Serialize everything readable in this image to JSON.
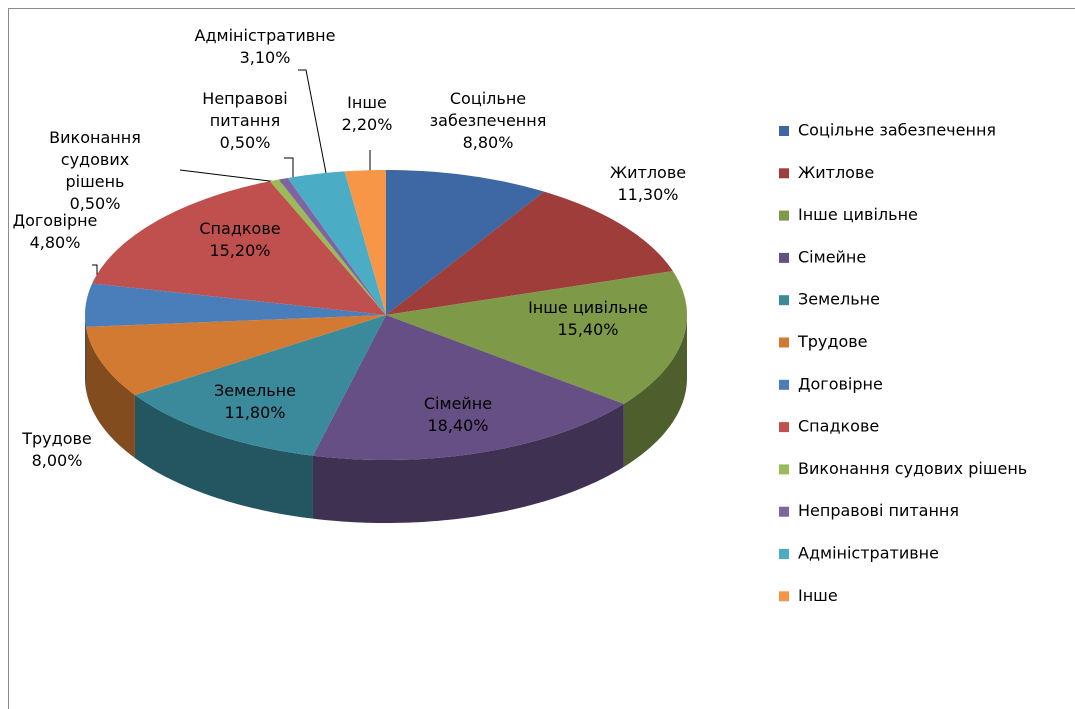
{
  "chart_data": {
    "type": "pie",
    "categories": [
      "Соцільне забезпечення",
      "Житлове",
      "Інше цивільне",
      "Сімейне",
      "Земельне",
      "Трудове",
      "Договірне",
      "Спадкове",
      "Виконання судових рішень",
      "Неправові питання",
      "Адміністративне",
      "Інше"
    ],
    "values": [
      8.8,
      11.3,
      15.4,
      18.4,
      11.8,
      8.0,
      4.8,
      15.2,
      0.5,
      0.5,
      3.1,
      2.2
    ],
    "value_labels": [
      "8,80%",
      "11,30%",
      "15,40%",
      "18,40%",
      "11,80%",
      "8,00%",
      "4,80%",
      "15,20%",
      "0,50%",
      "0,50%",
      "3,10%",
      "2,20%"
    ],
    "colors": [
      "#3d68a3",
      "#9e3d3a",
      "#7e9a48",
      "#654f85",
      "#3a8a9c",
      "#d27a31",
      "#4a7ebb",
      "#c0504d",
      "#9bbb59",
      "#8064a2",
      "#4bacc6",
      "#f79646"
    ],
    "legend": "right"
  }
}
